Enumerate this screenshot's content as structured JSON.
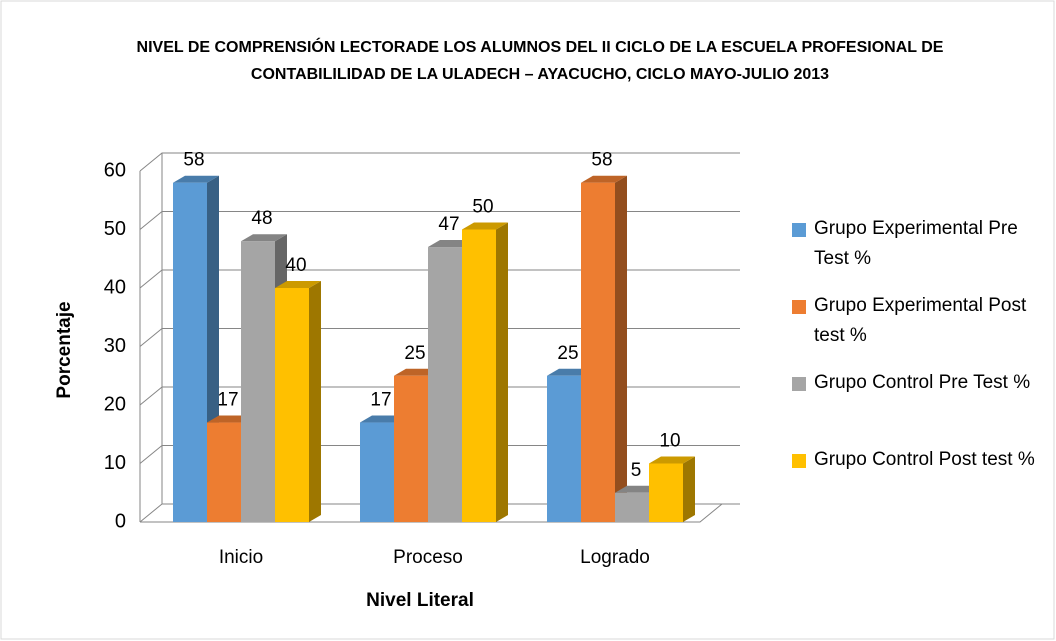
{
  "chart_data": {
    "type": "bar3d",
    "title": "NIVEL DE COMPRENSIÓN LECTORADE LOS ALUMNOS DEL II CICLO DE LA ESCUELA PROFESIONAL DE CONTABILILIDAD DE LA ULADECH – AYACUCHO, CICLO MAYO-JULIO 2013",
    "x_label": "Nivel Literal",
    "y_label": "Porcentaje",
    "categories": [
      "Inicio",
      "Proceso",
      "Logrado"
    ],
    "series": [
      {
        "name": "Grupo Experimental Pre Test %",
        "color": "#5b9bd5",
        "values": [
          58,
          17,
          25
        ]
      },
      {
        "name": "Grupo Experimental Post test %",
        "color": "#ed7d31",
        "values": [
          17,
          25,
          58
        ]
      },
      {
        "name": "Grupo Control Pre Test %",
        "color": "#a5a5a5",
        "values": [
          48,
          47,
          5
        ]
      },
      {
        "name": "Grupo Control Post test %",
        "color": "#ffc000",
        "values": [
          40,
          50,
          10
        ]
      }
    ],
    "ylim": [
      0,
      60
    ],
    "yticks": [
      0,
      10,
      20,
      30,
      40,
      50,
      60
    ],
    "grid": true,
    "legend": "right"
  }
}
